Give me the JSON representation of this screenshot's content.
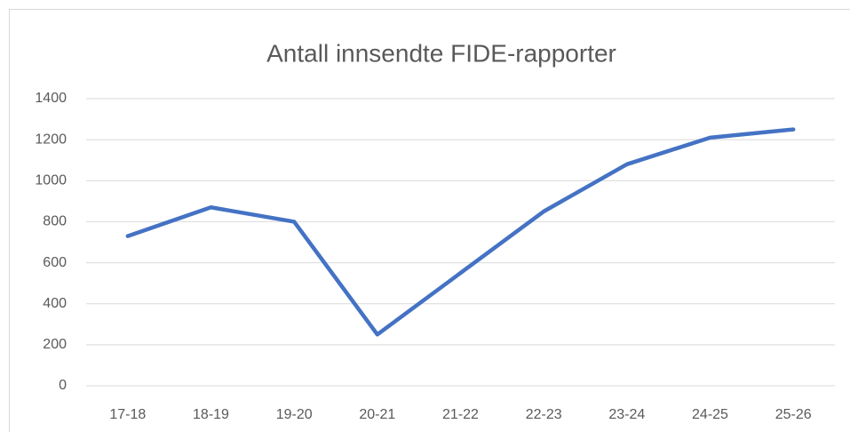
{
  "chart_data": {
    "type": "line",
    "title": "Antall innsendte FIDE-rapporter",
    "categories": [
      "17-18",
      "18-19",
      "19-20",
      "20-21",
      "21-22",
      "22-23",
      "23-24",
      "24-25",
      "25-26"
    ],
    "values": [
      730,
      870,
      800,
      250,
      550,
      850,
      1080,
      1210,
      1250
    ],
    "color": "#4472c4",
    "ylim": [
      0,
      1400
    ],
    "yticks": [
      0,
      200,
      400,
      600,
      800,
      1000,
      1200,
      1400
    ],
    "grid": true
  }
}
